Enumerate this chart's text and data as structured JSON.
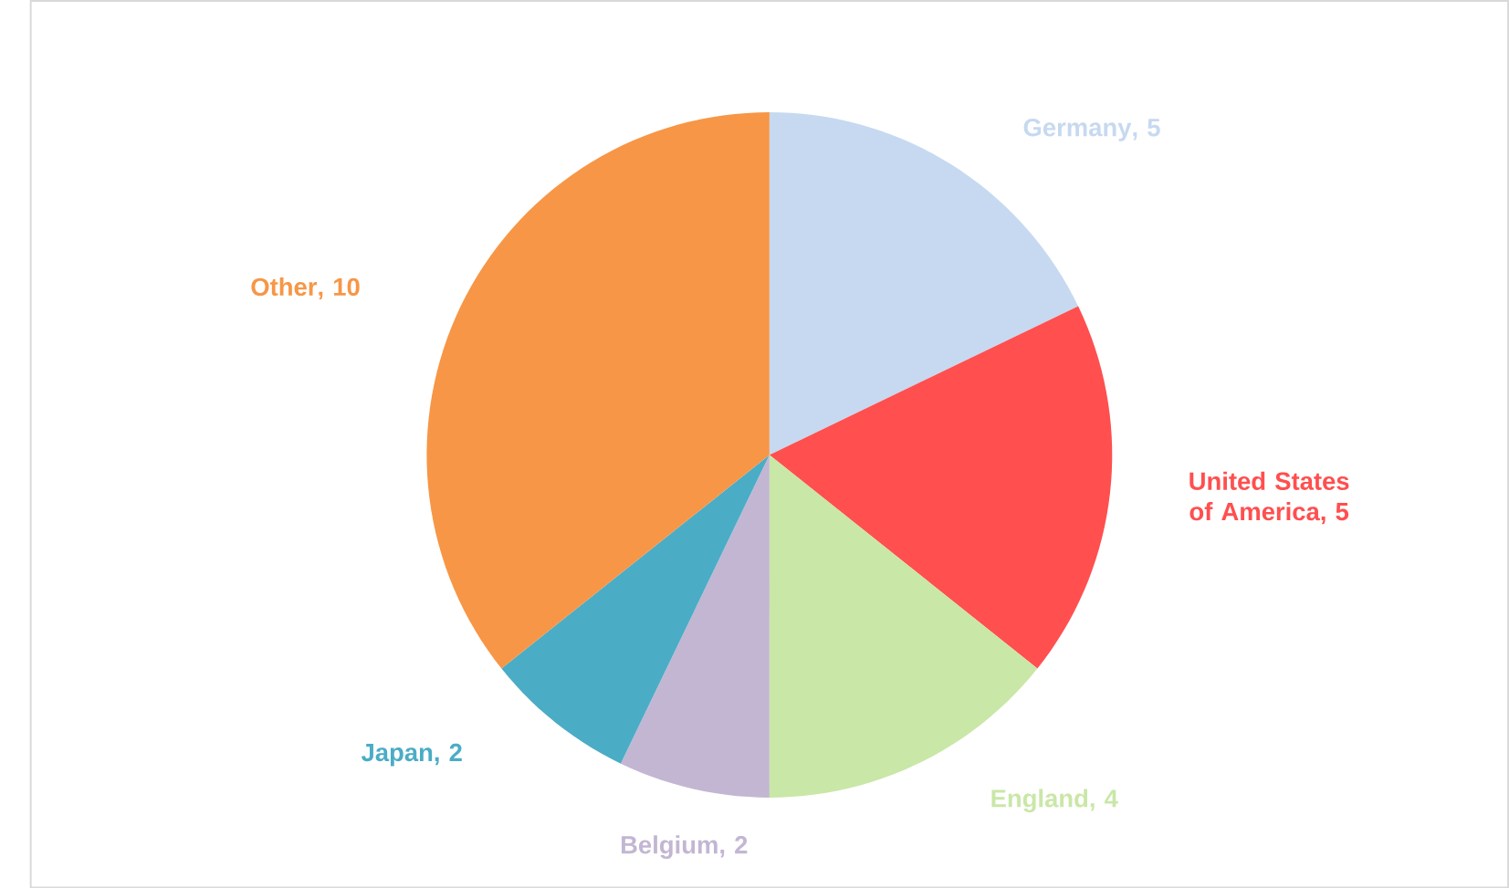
{
  "chart_data": {
    "type": "pie",
    "categories": [
      "Germany",
      "United States of America",
      "England",
      "Belgium",
      "Japan",
      "Other"
    ],
    "values": [
      5,
      5,
      4,
      2,
      2,
      10
    ],
    "colors": [
      "#c6d9f0",
      "#ff4f4f",
      "#c9e7a7",
      "#c3b6d3",
      "#4bacc6",
      "#f79646"
    ],
    "value_labels": [
      ", 5",
      ", 5",
      ", 4",
      ", 2",
      ", 2",
      ", 10"
    ]
  }
}
